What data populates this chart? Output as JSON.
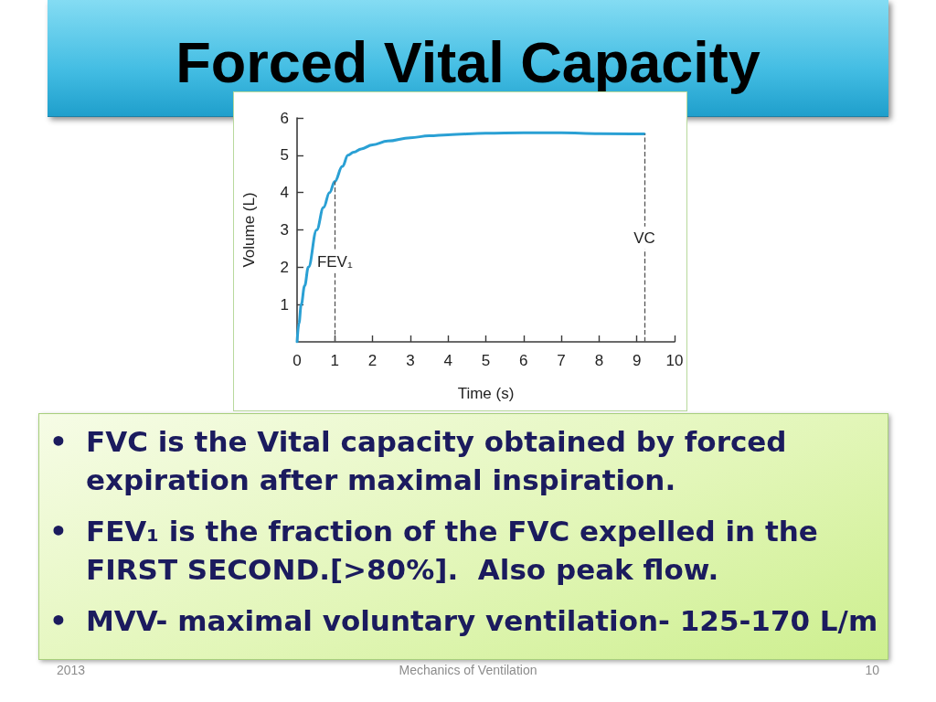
{
  "chart_data": {
    "type": "line",
    "title": "Forced Vital Capacity",
    "xlabel": "Time (s)",
    "ylabel": "Volume (L)",
    "x": [
      0,
      0.05,
      0.11,
      0.2,
      0.3,
      0.52,
      0.7,
      0.86,
      1,
      1.2,
      1.35,
      1.5,
      1.7,
      2,
      2.4,
      3,
      3.5,
      4,
      5,
      6,
      7,
      8,
      9.2
    ],
    "values": [
      0,
      0.5,
      1,
      1.5,
      2,
      3,
      3.6,
      4,
      4.3,
      4.7,
      5,
      5.08,
      5.17,
      5.28,
      5.38,
      5.47,
      5.52,
      5.55,
      5.59,
      5.6,
      5.6,
      5.58,
      5.57
    ],
    "color": "#2aa0d4",
    "marker": "none",
    "line_style": "solid",
    "xlim": [
      0,
      10
    ],
    "xticks": [
      0,
      1,
      2,
      3,
      4,
      5,
      6,
      7,
      8,
      9,
      10
    ],
    "ylim": [
      0,
      6
    ],
    "yticks": [
      1,
      2,
      3,
      4,
      5,
      6
    ],
    "ref_lines": [
      {
        "axis": "x",
        "value": 1,
        "label": "FEV₁",
        "line_style": "dashed",
        "color": "#555555"
      },
      {
        "axis": "x",
        "value": 9.2,
        "label": "VC",
        "line_style": "dashed",
        "color": "#555555"
      }
    ],
    "annotations": [
      "• FVC is the Vital capacity obtained by forced expiration after maximal inspiration.",
      "• FEV₁ is the fraction of the FVC expelled in the FIRST SECOND.[>80%].  Also peak flow.",
      "• MVV- maximal voluntary ventilation- 125-170 L/m",
      "2013",
      "Mechanics of Ventilation",
      "10"
    ]
  }
}
